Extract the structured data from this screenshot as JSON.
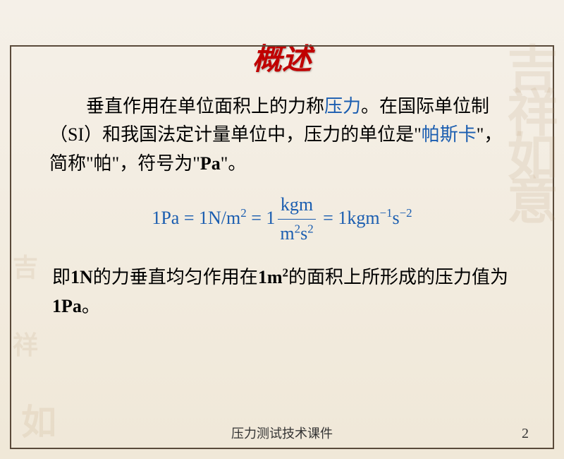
{
  "title": "概述",
  "paragraph1": {
    "part1": "垂直作用在单位面积上的力称",
    "highlight1": "压力",
    "part2": "。在国际单位制（SI）和我国法定计量单位中，压力的单位是\"",
    "highlight2": "帕斯卡",
    "part3": "\"，简称\"帕\"，符号为\"",
    "bold1": "Pa",
    "part4": "\"。"
  },
  "formula": {
    "lhs": "1Pa",
    "eq1": "1N/m",
    "eq1_sup": "2",
    "frac_num_a": "kgm",
    "frac_den_a": "m",
    "frac_den_a_sup": "2",
    "frac_den_b": "s",
    "frac_den_b_sup": "2",
    "rhs": "1kgm",
    "rhs_sup1": "−1",
    "rhs_s": "s",
    "rhs_sup2": "−2",
    "one": "1"
  },
  "paragraph2": {
    "part1": "即",
    "bold1": "1N",
    "part2": "的力垂直均匀作用在",
    "bold2": "1m",
    "sup2": "2",
    "part3": "的面积上所形成的压力值为",
    "bold3": "1Pa",
    "part4": "。"
  },
  "footer": "压力测试技术课件",
  "pagenum": "2",
  "watermarks": {
    "topright": "吉祥如意",
    "left1": "吉",
    "left2": "祥",
    "bottomleft": "如"
  },
  "colors": {
    "title": "#c00000",
    "blue": "#1a5db0",
    "bg_top": "#f5f0e8",
    "bg_bottom": "#f0e8d8",
    "border": "#5a4a3a"
  }
}
